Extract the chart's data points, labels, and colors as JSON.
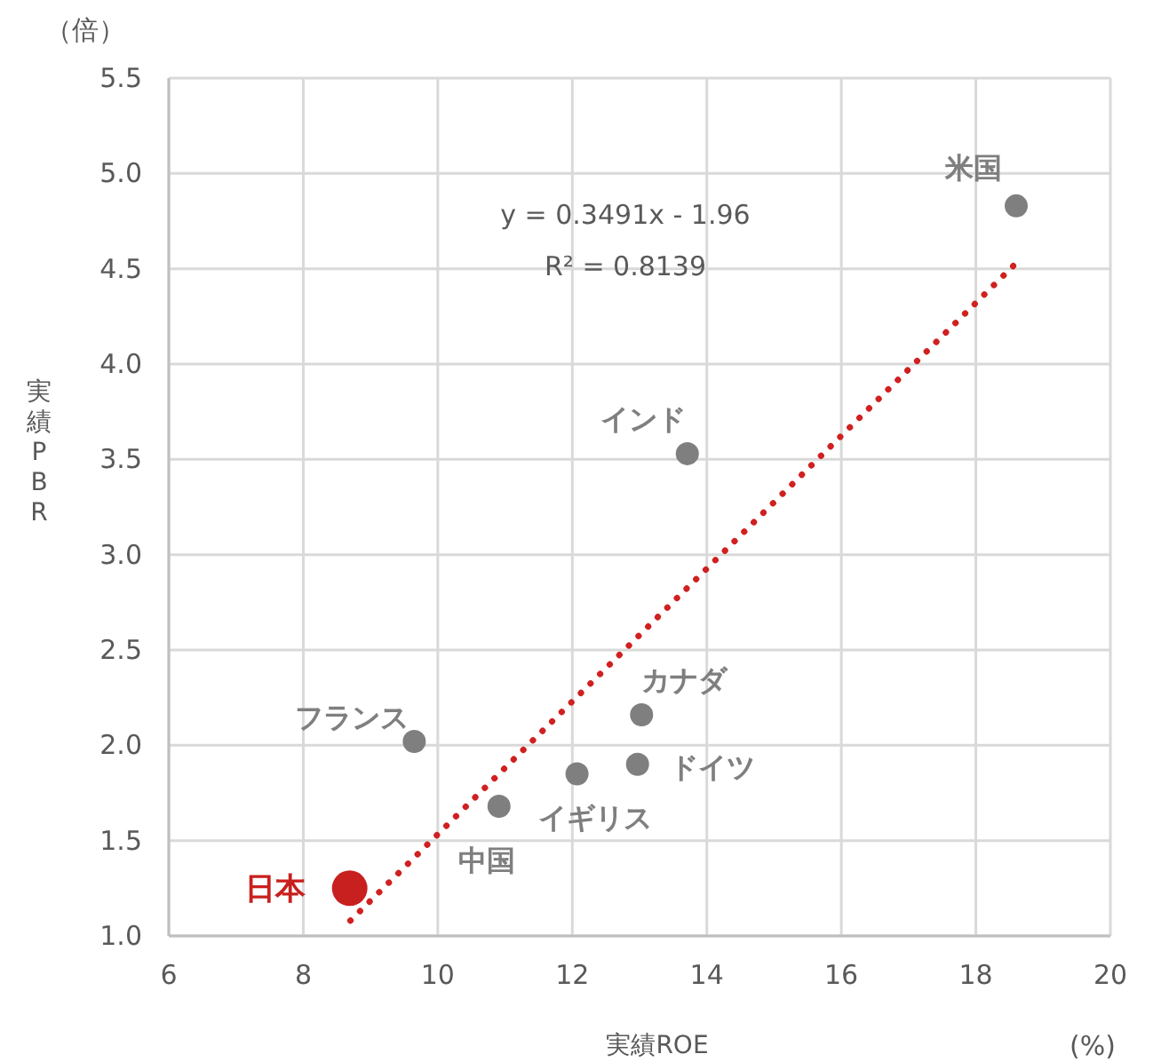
{
  "chart_data": {
    "type": "scatter",
    "xlabel": "実績ROE",
    "ylabel": "実績PBR",
    "annotations": [
      "y = 0.3491x - 1.96",
      "R² = 0.8139",
      "（倍）",
      "(%)"
    ],
    "xlim": [
      6,
      20
    ],
    "xticks": [
      6,
      8,
      10,
      12,
      14,
      16,
      18,
      20
    ],
    "ylim": [
      1.0,
      5.5
    ],
    "yticks": [
      {
        "value": 1.0,
        "label": "1.0"
      },
      {
        "value": 1.5,
        "label": "1.5"
      },
      {
        "value": 2.0,
        "label": "2.0"
      },
      {
        "value": 2.5,
        "label": "2.5"
      },
      {
        "value": 3.0,
        "label": "3.0"
      },
      {
        "value": 3.5,
        "label": "3.5"
      },
      {
        "value": 4.0,
        "label": "4.0"
      },
      {
        "value": 4.5,
        "label": "4.5"
      },
      {
        "value": 5.0,
        "label": "5.0"
      },
      {
        "value": 5.5,
        "label": "5.5"
      }
    ],
    "grid": true,
    "marker": "circle",
    "series": [
      {
        "type": "line",
        "color": "#d02020",
        "line_style": "dotted",
        "marker": "none",
        "x": [
          8.7,
          18.6
        ],
        "values": [
          1.08,
          4.53
        ]
      },
      {
        "name": "米国",
        "color": "#7f7f7f",
        "x": [
          18.6
        ],
        "values": [
          4.83
        ]
      },
      {
        "name": "インド",
        "color": "#7f7f7f",
        "x": [
          13.71
        ],
        "values": [
          3.53
        ]
      },
      {
        "name": "カナダ",
        "color": "#7f7f7f",
        "x": [
          13.03
        ],
        "values": [
          2.16
        ]
      },
      {
        "name": "ドイツ",
        "color": "#7f7f7f",
        "x": [
          12.97
        ],
        "values": [
          1.9
        ]
      },
      {
        "name": "イギリス",
        "color": "#7f7f7f",
        "x": [
          12.07
        ],
        "values": [
          1.85
        ]
      },
      {
        "name": "中国",
        "color": "#7f7f7f",
        "x": [
          10.91
        ],
        "values": [
          1.68
        ]
      },
      {
        "name": "フランス",
        "color": "#7f7f7f",
        "x": [
          9.65
        ],
        "values": [
          2.02
        ]
      },
      {
        "name": "日本",
        "color": "#c8201e",
        "x": [
          8.69
        ],
        "values": [
          1.25
        ]
      }
    ]
  }
}
